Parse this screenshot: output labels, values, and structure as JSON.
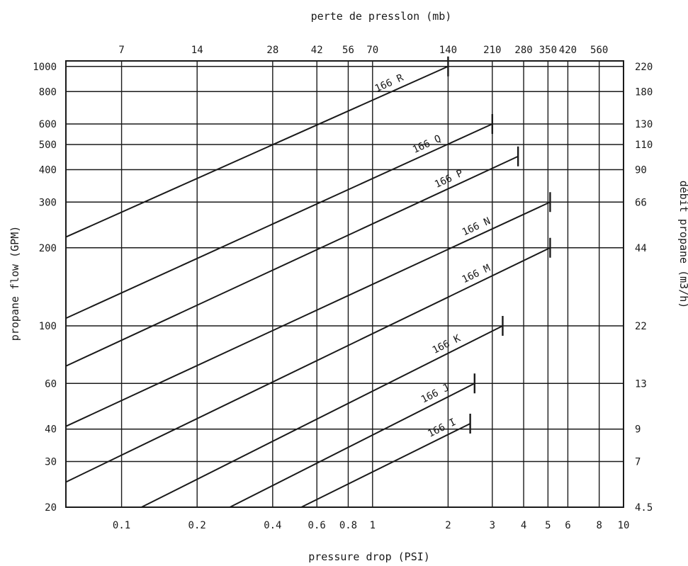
{
  "chart_data": {
    "type": "line",
    "top_title": "perte de presslon (mb)",
    "bottom_title": "pressure drop (PSI)",
    "left_title": "propane flow (GPM)",
    "right_title": "débit propane (m3/h)",
    "x_scale": "log",
    "y_scale": "log",
    "xlim": [
      0.06,
      10
    ],
    "ylim": [
      20,
      1050
    ],
    "grid": true,
    "x_bottom_ticks": [
      {
        "value": 0.1,
        "label": "0.1"
      },
      {
        "value": 0.2,
        "label": "0.2"
      },
      {
        "value": 0.4,
        "label": "0.4"
      },
      {
        "value": 0.6,
        "label": "0.6"
      },
      {
        "value": 0.8,
        "label": "0.8"
      },
      {
        "value": 1,
        "label": "1"
      },
      {
        "value": 2,
        "label": "2"
      },
      {
        "value": 3,
        "label": "3"
      },
      {
        "value": 4,
        "label": "4"
      },
      {
        "value": 5,
        "label": "5"
      },
      {
        "value": 6,
        "label": "6"
      },
      {
        "value": 8,
        "label": "8"
      },
      {
        "value": 10,
        "label": "10"
      }
    ],
    "x_top_ticks": [
      {
        "value": 0.1,
        "label": "7"
      },
      {
        "value": 0.2,
        "label": "14"
      },
      {
        "value": 0.4,
        "label": "28"
      },
      {
        "value": 0.6,
        "label": "42"
      },
      {
        "value": 0.8,
        "label": "56"
      },
      {
        "value": 1,
        "label": "70"
      },
      {
        "value": 2,
        "label": "140"
      },
      {
        "value": 3,
        "label": "210"
      },
      {
        "value": 4,
        "label": "280"
      },
      {
        "value": 5,
        "label": "350"
      },
      {
        "value": 6,
        "label": "420"
      },
      {
        "value": 8,
        "label": "560"
      }
    ],
    "y_left_ticks": [
      {
        "value": 20,
        "label": "20"
      },
      {
        "value": 30,
        "label": "30"
      },
      {
        "value": 40,
        "label": "40"
      },
      {
        "value": 60,
        "label": "60"
      },
      {
        "value": 100,
        "label": "100"
      },
      {
        "value": 200,
        "label": "200"
      },
      {
        "value": 300,
        "label": "300"
      },
      {
        "value": 400,
        "label": "400"
      },
      {
        "value": 500,
        "label": "500"
      },
      {
        "value": 600,
        "label": "600"
      },
      {
        "value": 800,
        "label": "800"
      },
      {
        "value": 1000,
        "label": "1000"
      }
    ],
    "y_right_ticks": [
      {
        "value": 20,
        "label": "4.5"
      },
      {
        "value": 30,
        "label": "7"
      },
      {
        "value": 40,
        "label": "9"
      },
      {
        "value": 60,
        "label": "13"
      },
      {
        "value": 100,
        "label": "22"
      },
      {
        "value": 200,
        "label": "44"
      },
      {
        "value": 300,
        "label": "66"
      },
      {
        "value": 400,
        "label": "90"
      },
      {
        "value": 500,
        "label": "110"
      },
      {
        "value": 600,
        "label": "130"
      },
      {
        "value": 800,
        "label": "180"
      },
      {
        "value": 1000,
        "label": "220"
      }
    ],
    "series": [
      {
        "name": "166 R",
        "points": [
          [
            0.06,
            220
          ],
          [
            2.0,
            1000
          ]
        ]
      },
      {
        "name": "166 Q",
        "points": [
          [
            0.06,
            107
          ],
          [
            3.0,
            600
          ]
        ]
      },
      {
        "name": "166 P",
        "points": [
          [
            0.06,
            70
          ],
          [
            3.8,
            450
          ]
        ]
      },
      {
        "name": "166 N",
        "points": [
          [
            0.06,
            41
          ],
          [
            5.1,
            300
          ]
        ]
      },
      {
        "name": "166 M",
        "points": [
          [
            0.06,
            25
          ],
          [
            5.1,
            200
          ]
        ]
      },
      {
        "name": "166 K",
        "points": [
          [
            0.12,
            20
          ],
          [
            3.3,
            100
          ]
        ]
      },
      {
        "name": "166 J",
        "points": [
          [
            0.27,
            20
          ],
          [
            2.55,
            60
          ]
        ]
      },
      {
        "name": "166 I",
        "points": [
          [
            0.52,
            20
          ],
          [
            2.45,
            42
          ]
        ]
      }
    ]
  }
}
